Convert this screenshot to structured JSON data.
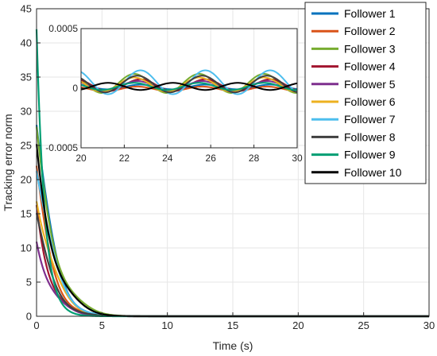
{
  "chart_data": {
    "type": "line",
    "title": "",
    "xlabel": "Time (s)",
    "ylabel": "Tracking error norm",
    "xlim": [
      0,
      30
    ],
    "ylim": [
      0,
      45
    ],
    "xticks": [
      0,
      5,
      10,
      15,
      20,
      25,
      30
    ],
    "yticks": [
      0,
      5,
      10,
      15,
      20,
      25,
      30,
      35,
      40,
      45
    ],
    "grid": true,
    "legend_position": "top-right",
    "series": [
      {
        "name": "Follower 1",
        "color": "#0072BD",
        "initial": 28,
        "decay": 0.75
      },
      {
        "name": "Follower 2",
        "color": "#D95319",
        "initial": 20,
        "decay": 0.78
      },
      {
        "name": "Follower 3",
        "color": "#77AC30",
        "initial": 25,
        "decay": 0.55
      },
      {
        "name": "Follower 4",
        "color": "#A2142F",
        "initial": 16,
        "decay": 0.85
      },
      {
        "name": "Follower 5",
        "color": "#7E2F8E",
        "initial": 12,
        "decay": 0.8
      },
      {
        "name": "Follower 6",
        "color": "#EDB120",
        "initial": 19,
        "decay": 0.7
      },
      {
        "name": "Follower 7",
        "color": "#4DBEEE",
        "initial": 22,
        "decay": 0.68
      },
      {
        "name": "Follower 8",
        "color": "#404040",
        "initial": 14,
        "decay": 0.72
      },
      {
        "name": "Follower 9",
        "color": "#009E73",
        "initial": 42,
        "decay": 1.6
      },
      {
        "name": "Follower 10",
        "color": "#000000",
        "initial": 24,
        "decay": 0.6
      }
    ],
    "inset": {
      "xlim": [
        20,
        30
      ],
      "ylim": [
        -0.0005,
        0.0005
      ],
      "xticks": [
        20,
        22,
        24,
        26,
        28,
        30
      ],
      "yticks": [
        -0.0005,
        0,
        0.0005
      ],
      "ytick_labels": [
        "-0.0005",
        "0",
        "0.0005"
      ],
      "period": 3,
      "amplitudes": [
        2e-05,
        2e-05,
        8e-05,
        5e-05,
        4e-05,
        6e-05,
        0.0001,
        7e-05,
        3e-05,
        3e-05
      ]
    }
  }
}
